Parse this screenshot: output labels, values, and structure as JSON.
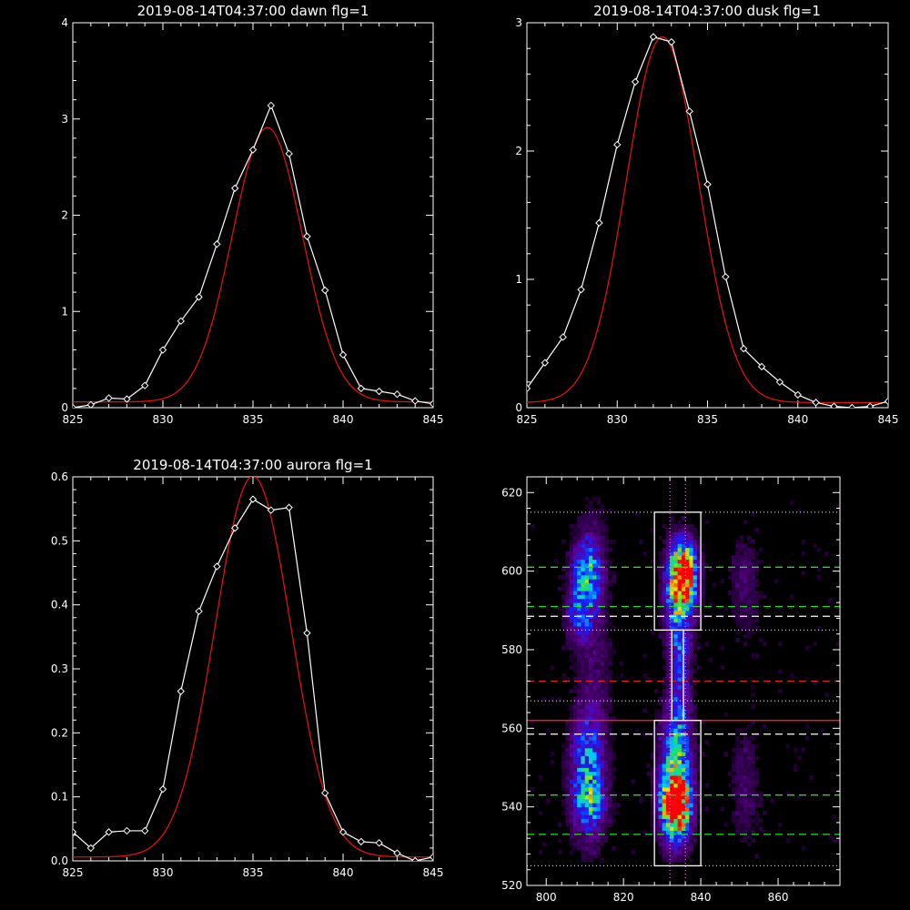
{
  "titles": {
    "dawn": "2019-08-14T04:37:00 dawn flg=1",
    "dusk": "2019-08-14T04:37:00 dusk flg=1",
    "aurora": "2019-08-14T04:37:00 aurora flg=1"
  },
  "colors": {
    "background": "#000000",
    "data_line": "#ffffff",
    "fit_line": "#e01010",
    "green_dash": "#22dd22",
    "red_dash": "#dd2222",
    "axis": "#ffffff"
  },
  "chart_data": [
    {
      "id": "dawn",
      "type": "line",
      "title": "2019-08-14T04:37:00 dawn flg=1",
      "xlim": [
        825,
        845
      ],
      "ylim": [
        0,
        4
      ],
      "xticks": [
        825,
        830,
        835,
        840,
        845
      ],
      "yticks": [
        0,
        1,
        2,
        3,
        4
      ],
      "series": [
        {
          "role": "data",
          "marker": "diamond",
          "x": [
            825,
            826,
            827,
            828,
            829,
            830,
            831,
            832,
            833,
            834,
            835,
            836,
            837,
            838,
            839,
            840,
            841,
            842,
            843,
            844,
            845
          ],
          "y": [
            0.0,
            0.03,
            0.1,
            0.09,
            0.23,
            0.6,
            0.9,
            1.15,
            1.7,
            2.28,
            2.68,
            3.14,
            2.64,
            1.78,
            1.22,
            0.55,
            0.2,
            0.17,
            0.14,
            0.07,
            0.04
          ]
        },
        {
          "role": "fit",
          "gaussian": {
            "amplitude": 2.85,
            "center": 835.8,
            "sigma": 1.95,
            "offset": 0.06
          }
        }
      ]
    },
    {
      "id": "dusk",
      "type": "line",
      "title": "2019-08-14T04:37:00 dusk flg=1",
      "xlim": [
        825,
        845
      ],
      "ylim": [
        0,
        3
      ],
      "xticks": [
        825,
        830,
        835,
        840,
        845
      ],
      "yticks": [
        0,
        1,
        2,
        3
      ],
      "series": [
        {
          "role": "data",
          "marker": "diamond",
          "x": [
            825,
            826,
            827,
            828,
            829,
            830,
            831,
            832,
            833,
            834,
            835,
            836,
            837,
            838,
            839,
            840,
            841,
            842,
            843,
            844,
            845
          ],
          "y": [
            0.15,
            0.35,
            0.55,
            0.92,
            1.44,
            2.05,
            2.54,
            2.89,
            2.85,
            2.31,
            1.74,
            1.02,
            0.46,
            0.32,
            0.2,
            0.1,
            0.04,
            0.01,
            0.0,
            0.01,
            0.05
          ]
        },
        {
          "role": "fit",
          "gaussian": {
            "amplitude": 2.85,
            "center": 832.5,
            "sigma": 2.0,
            "offset": 0.04
          }
        }
      ]
    },
    {
      "id": "aurora",
      "type": "line",
      "title": "2019-08-14T04:37:00 aurora flg=1",
      "xlim": [
        825,
        845
      ],
      "ylim": [
        0,
        0.6
      ],
      "xticks": [
        825,
        830,
        835,
        840,
        845
      ],
      "yticks": [
        0.0,
        0.1,
        0.2,
        0.3,
        0.4,
        0.5,
        0.6
      ],
      "series": [
        {
          "role": "data",
          "marker": "diamond",
          "x": [
            825,
            826,
            827,
            828,
            829,
            830,
            831,
            832,
            833,
            834,
            835,
            836,
            837,
            838,
            839,
            840,
            841,
            842,
            843,
            844,
            845
          ],
          "y": [
            0.045,
            0.02,
            0.045,
            0.047,
            0.047,
            0.112,
            0.265,
            0.39,
            0.46,
            0.52,
            0.565,
            0.548,
            0.552,
            0.356,
            0.106,
            0.045,
            0.03,
            0.028,
            0.012,
            0.0,
            0.006
          ]
        },
        {
          "role": "fit",
          "gaussian": {
            "amplitude": 0.595,
            "center": 835.0,
            "sigma": 2.1,
            "offset": 0.006
          }
        }
      ]
    },
    {
      "id": "image",
      "type": "heatmap",
      "title": "",
      "xlim": [
        795,
        876
      ],
      "ylim": [
        520,
        624
      ],
      "xticks": [
        800,
        820,
        840,
        860
      ],
      "yticks": [
        520,
        540,
        560,
        580,
        600,
        620
      ],
      "blobs": [
        {
          "x": 810,
          "y": 599,
          "sx": 2.5,
          "sy": 6,
          "amp": 0.55
        },
        {
          "x": 808,
          "y": 588,
          "sx": 2.5,
          "sy": 5,
          "amp": 0.3
        },
        {
          "x": 810,
          "y": 548,
          "sx": 3,
          "sy": 10,
          "amp": 0.45
        },
        {
          "x": 811,
          "y": 540,
          "sx": 2.5,
          "sy": 4,
          "amp": 0.25
        },
        {
          "x": 835,
          "y": 599,
          "sx": 2.3,
          "sy": 5,
          "amp": 1.0
        },
        {
          "x": 834,
          "y": 592,
          "sx": 2.5,
          "sy": 9,
          "amp": 0.5
        },
        {
          "x": 834,
          "y": 570,
          "sx": 1.8,
          "sy": 12,
          "amp": 0.28
        },
        {
          "x": 833,
          "y": 540,
          "sx": 2.3,
          "sy": 5,
          "amp": 1.0
        },
        {
          "x": 833,
          "y": 547,
          "sx": 2.8,
          "sy": 11,
          "amp": 0.6
        },
        {
          "x": 851,
          "y": 596,
          "sx": 2.5,
          "sy": 9,
          "amp": 0.14
        },
        {
          "x": 851,
          "y": 545,
          "sx": 2.5,
          "sy": 10,
          "amp": 0.14
        },
        {
          "x": 812,
          "y": 575,
          "sx": 3,
          "sy": 30,
          "amp": 0.12
        }
      ],
      "boxes": [
        {
          "x": [
            828,
            840
          ],
          "y": [
            585,
            615
          ]
        },
        {
          "x": [
            828,
            840
          ],
          "y": [
            525,
            562
          ]
        },
        {
          "x": [
            832.5,
            835.5
          ],
          "y": [
            562,
            585
          ]
        }
      ],
      "green_dashed_y": [
        601,
        591,
        543,
        533
      ],
      "white_dashed_y": [
        588.5,
        558.5
      ],
      "red_dashed_y": [
        572
      ],
      "red_solid_y": [
        562
      ],
      "dotted_h_y": [
        615,
        585,
        562,
        525,
        567
      ],
      "dotted_v_x": [
        832,
        836
      ]
    }
  ]
}
